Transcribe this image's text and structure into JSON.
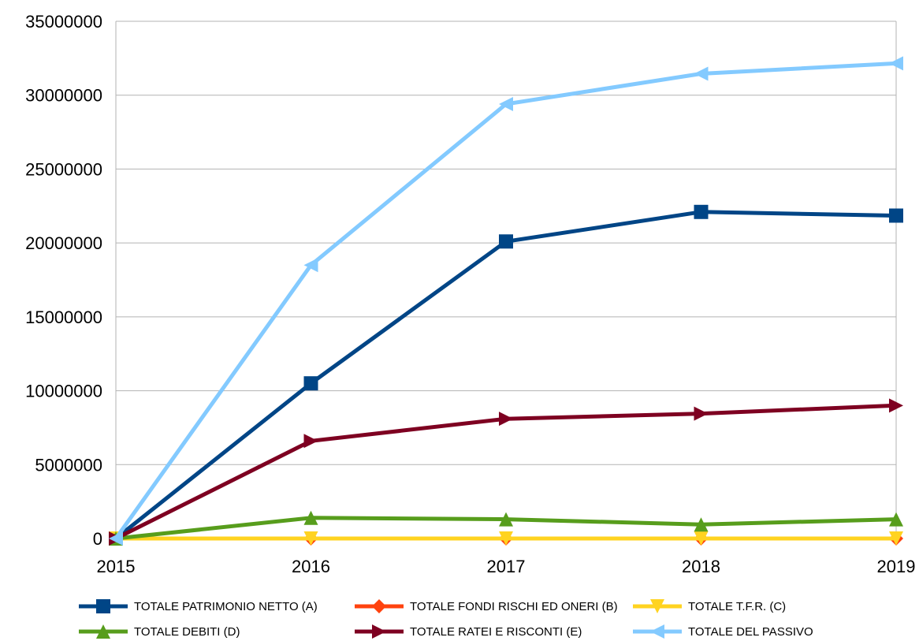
{
  "chart_data": {
    "type": "line",
    "title": "",
    "xlabel": "",
    "ylabel": "",
    "x": [
      "2015",
      "2016",
      "2017",
      "2018",
      "2019"
    ],
    "ylim": [
      0,
      35000000
    ],
    "y_ticks": [
      0,
      5000000,
      10000000,
      15000000,
      20000000,
      25000000,
      30000000,
      35000000
    ],
    "grid": "horizontal",
    "legend_position": "bottom",
    "series": [
      {
        "name": "TOTALE PATRIMONIO NETTO (A)",
        "color": "#004586",
        "marker": "square",
        "values": [
          0,
          10500000,
          20100000,
          22100000,
          21850000
        ]
      },
      {
        "name": "TOTALE FONDI RISCHI ED ONERI (B)",
        "color": "#ff420e",
        "marker": "diamond",
        "values": [
          0,
          0,
          0,
          0,
          0
        ]
      },
      {
        "name": "TOTALE T.F.R. (C)",
        "color": "#ffd320",
        "marker": "triangle-down",
        "values": [
          0,
          0,
          0,
          0,
          0
        ]
      },
      {
        "name": "TOTALE DEBITI (D)",
        "color": "#579d1c",
        "marker": "triangle-up",
        "values": [
          0,
          1400000,
          1300000,
          950000,
          1300000
        ]
      },
      {
        "name": "TOTALE RATEI E RISCONTI (E)",
        "color": "#7e0021",
        "marker": "triangle-right",
        "values": [
          0,
          6600000,
          8100000,
          8450000,
          9000000
        ]
      },
      {
        "name": "TOTALE DEL PASSIVO",
        "color": "#83caff",
        "marker": "triangle-left",
        "values": [
          0,
          18500000,
          29400000,
          31450000,
          32150000
        ]
      }
    ]
  }
}
